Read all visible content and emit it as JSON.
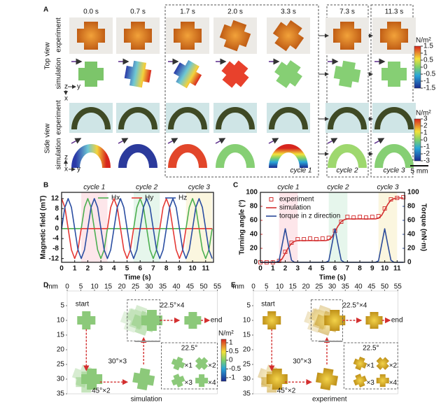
{
  "panel_labels": [
    "A",
    "B",
    "C",
    "D",
    "E"
  ],
  "panel_a": {
    "times": [
      "0.0 s",
      "0.7 s",
      "1.7 s",
      "2.0 s",
      "3.3 s",
      "7.3 s",
      "11.3 s"
    ],
    "views": [
      {
        "title": "Top view",
        "rows": [
          "experiment",
          "simulation"
        ]
      },
      {
        "title": "Side view",
        "rows": [
          "experiment",
          "simulation"
        ]
      }
    ],
    "axis_top": [
      "z",
      "y",
      "x"
    ],
    "axis_side": [
      "z",
      "y",
      "x"
    ],
    "cycles": [
      "cycle 1",
      "cycle 2",
      "cycle 3"
    ],
    "colorbars": [
      {
        "unit": "N/m²",
        "ticks": [
          1.5,
          1,
          0.5,
          0,
          -0.5,
          -1,
          -1.5
        ],
        "lim": [
          -1.5,
          1.5
        ]
      },
      {
        "unit": "N/m²",
        "ticks": [
          3,
          2,
          1,
          0,
          -1,
          -2,
          -3
        ],
        "lim": [
          -3,
          3
        ]
      }
    ],
    "scale_bar": "5 mm"
  },
  "chart_data": [
    {
      "type": "line",
      "xlabel": "Time (s)",
      "ylabel": "Magnetic field (mT)",
      "legend": "top",
      "x": [
        0,
        0.25,
        0.5,
        0.75,
        1,
        1.25,
        1.5,
        1.75,
        2,
        2.25,
        2.5,
        2.75,
        3,
        3.25,
        3.5,
        3.75,
        4,
        4.25,
        4.5,
        4.75,
        5,
        5.25,
        5.5,
        5.75,
        6,
        6.25,
        6.5,
        6.75,
        7,
        7.25,
        7.5,
        7.75,
        8,
        8.25,
        8.5,
        8.75,
        9,
        9.25,
        9.5,
        9.75,
        10,
        10.25,
        10.5,
        10.75,
        11,
        11.25,
        11.5
      ],
      "xlim": [
        0,
        11.6
      ],
      "xticks": [
        0,
        1,
        2,
        3,
        4,
        5,
        6,
        7,
        8,
        9,
        10,
        11
      ],
      "ylim": [
        -13.5,
        14.5
      ],
      "yticks": [
        -12,
        -8,
        -4,
        0,
        4,
        8,
        12
      ],
      "spans": [
        {
          "label": "cycle 1",
          "x": [
            1.5,
            3.5
          ],
          "color": "#fde6ea"
        },
        {
          "label": "cycle 2",
          "x": [
            5.5,
            7.5
          ],
          "color": "#e6f6ec"
        },
        {
          "label": "cycle 3",
          "x": [
            9.5,
            11.5
          ],
          "color": "#fbf6df"
        }
      ],
      "series": [
        {
          "name": "Hx",
          "color": "#4caf50",
          "values": [
            0,
            0,
            0,
            0,
            0,
            0,
            0,
            8.5,
            12,
            8.5,
            0,
            -8.5,
            -12,
            -8.5,
            0,
            0,
            0,
            0,
            0,
            0,
            0,
            0,
            0,
            8.5,
            12,
            8.5,
            0,
            -8.5,
            -12,
            -8.5,
            0,
            0,
            0,
            0,
            0,
            0,
            0,
            0,
            0,
            8.5,
            12,
            8.5,
            0,
            -8.5,
            -12,
            -8.5,
            0
          ]
        },
        {
          "name": "Hy",
          "color": "#e53935",
          "values": [
            12,
            8.5,
            0,
            -8.5,
            -12,
            -8.5,
            0,
            0,
            0,
            0,
            0,
            0,
            0,
            0,
            0,
            8.5,
            12,
            8.5,
            0,
            -8.5,
            -12,
            -8.5,
            0,
            0,
            0,
            0,
            0,
            0,
            0,
            0,
            0,
            8.5,
            12,
            8.5,
            0,
            -8.5,
            -12,
            -8.5,
            0,
            0,
            0,
            0,
            0,
            0,
            0,
            0,
            0
          ]
        },
        {
          "name": "Hz",
          "color": "#2b4ea2",
          "values": [
            0,
            8.5,
            12,
            8.5,
            0,
            -8.5,
            -12,
            -8.5,
            0,
            8.5,
            12,
            8.5,
            0,
            -8.5,
            -12,
            -8.5,
            0,
            8.5,
            12,
            8.5,
            0,
            -8.5,
            -12,
            -8.5,
            0,
            8.5,
            12,
            8.5,
            0,
            -8.5,
            -12,
            -8.5,
            0,
            8.5,
            12,
            8.5,
            0,
            -8.5,
            -12,
            -8.5,
            0,
            8.5,
            12,
            8.5,
            0,
            -8.5,
            -12
          ]
        }
      ]
    },
    {
      "type": "line",
      "xlabel": "Time (s)",
      "ylabel": "Turning angle (°)",
      "y2label": "Torque (nN·m)",
      "ylabel_color": "#d32f2f",
      "y2label_color": "#2a4a9a",
      "legend": "upper left",
      "x": [
        0,
        0.25,
        0.5,
        0.75,
        1,
        1.25,
        1.5,
        1.75,
        2,
        2.25,
        2.5,
        2.75,
        3,
        3.25,
        3.5,
        3.75,
        4,
        4.25,
        4.5,
        4.75,
        5,
        5.25,
        5.5,
        5.75,
        6,
        6.25,
        6.5,
        6.75,
        7,
        7.25,
        7.5,
        7.75,
        8,
        8.25,
        8.5,
        8.75,
        9,
        9.25,
        9.5,
        9.75,
        10,
        10.25,
        10.5,
        10.75,
        11,
        11.25,
        11.5
      ],
      "xlim": [
        0,
        11.6
      ],
      "xticks": [
        0,
        1,
        2,
        3,
        4,
        5,
        6,
        7,
        8,
        9,
        10,
        11
      ],
      "ylim": [
        0,
        100
      ],
      "yticks": [
        0,
        20,
        40,
        60,
        80,
        100
      ],
      "y2lim": [
        0,
        100
      ],
      "y2ticks": [
        0,
        20,
        40,
        60,
        80,
        100
      ],
      "spans": [
        {
          "label": "cycle 1",
          "x": [
            1.5,
            3
          ],
          "color": "#fde6ea"
        },
        {
          "label": "cycle 2",
          "x": [
            5.5,
            7
          ],
          "color": "#e6f6ec"
        },
        {
          "label": "cycle 3",
          "x": [
            9.5,
            11
          ],
          "color": "#fbf6df"
        }
      ],
      "series": [
        {
          "name": "experiment",
          "color": "#d32f2f",
          "marker": "square",
          "values": [
            0,
            null,
            0,
            null,
            0,
            null,
            2,
            null,
            15,
            null,
            28,
            null,
            33,
            null,
            33,
            null,
            34,
            null,
            33,
            null,
            34,
            null,
            35,
            null,
            45,
            null,
            58,
            null,
            65,
            null,
            64,
            null,
            65,
            null,
            64,
            null,
            65,
            null,
            66,
            null,
            77,
            null,
            90,
            null,
            92,
            null,
            93
          ]
        },
        {
          "name": "simulation",
          "color": "#d32f2f",
          "values": [
            0,
            0,
            0,
            0,
            0,
            0,
            1,
            5,
            13,
            21,
            27,
            30,
            31,
            31,
            31,
            31,
            31,
            31,
            31,
            31,
            31,
            31,
            32,
            36,
            44,
            52,
            58,
            61,
            62,
            62,
            62,
            62,
            62,
            62,
            62,
            62,
            62,
            62,
            63,
            67,
            75,
            83,
            89,
            91,
            92,
            92,
            92
          ]
        },
        {
          "name": "torque in z direction",
          "color": "#2a4a9a",
          "axis": "y2",
          "values": [
            0,
            0,
            0,
            0,
            0,
            0,
            2,
            25,
            48,
            25,
            3,
            0,
            0,
            0,
            0,
            0,
            0,
            0,
            0,
            0,
            0,
            0,
            2,
            25,
            48,
            25,
            3,
            0,
            0,
            0,
            0,
            0,
            0,
            0,
            0,
            0,
            0,
            0,
            2,
            25,
            48,
            25,
            3,
            0,
            0,
            0,
            0
          ]
        }
      ]
    }
  ],
  "panel_d": {
    "unit": "mm",
    "xlim": [
      0,
      55
    ],
    "ylim": [
      0,
      35
    ],
    "xticks": [
      0,
      5,
      10,
      15,
      20,
      25,
      30,
      35,
      40,
      45,
      50,
      55
    ],
    "yticks": [
      5,
      10,
      15,
      20,
      25,
      30,
      35
    ],
    "start": "start",
    "end": "end",
    "steps": [
      "22.5°×4",
      "30°×3",
      "45°×2"
    ],
    "caption": "simulation",
    "inset": {
      "angle": "22.5°",
      "marks": [
        "×1",
        "×2",
        "×3",
        "×4"
      ]
    },
    "colorbar": {
      "unit": "N/m²",
      "ticks": [
        1,
        0.5,
        0,
        -0.5,
        -1
      ],
      "lim": [
        -1.2,
        1.2
      ]
    }
  },
  "panel_e": {
    "unit": "mm",
    "xlim": [
      0,
      55
    ],
    "ylim": [
      0,
      35
    ],
    "xticks": [
      0,
      5,
      10,
      15,
      20,
      25,
      30,
      35,
      40,
      45,
      50,
      55
    ],
    "yticks": [
      5,
      10,
      15,
      20,
      25,
      30,
      35
    ],
    "start": "start",
    "end": "end",
    "steps": [
      "22.5°×4",
      "30°×3",
      "45°×2"
    ],
    "caption": "experiment",
    "inset": {
      "angle": "22.5°",
      "marks": [
        "×1",
        "×2",
        "×3",
        "×4"
      ]
    }
  }
}
